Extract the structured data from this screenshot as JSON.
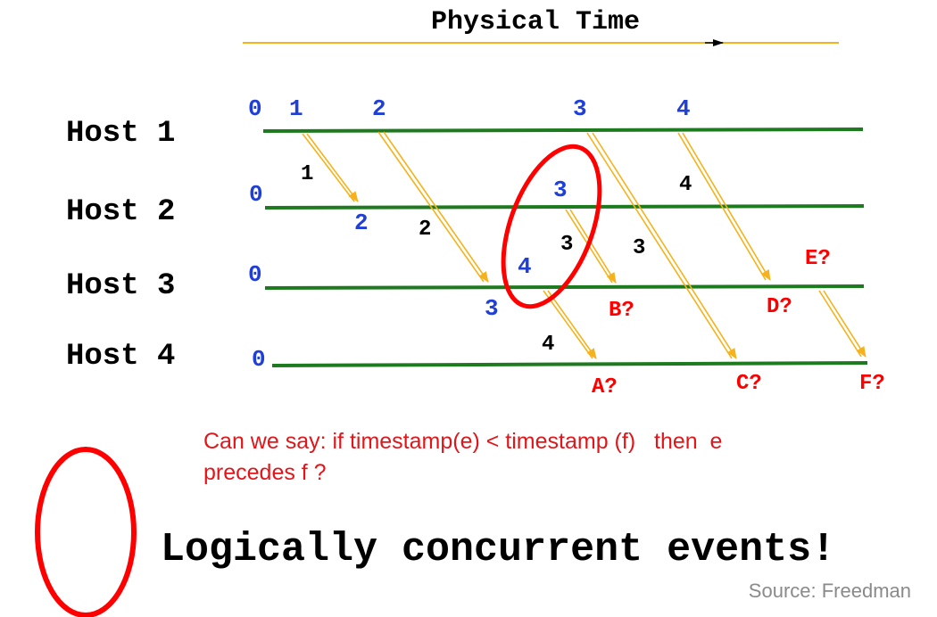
{
  "title": "Physical Time",
  "hosts": [
    "Host 1",
    "Host 2",
    "Host 3",
    "Host 4"
  ],
  "clock_labels": {
    "host1": [
      "0",
      "1",
      "2",
      "3",
      "4"
    ],
    "host2": [
      "0",
      "2",
      "3"
    ],
    "host3": [
      "0",
      "3",
      "4"
    ],
    "host4": [
      "0"
    ]
  },
  "message_labels": [
    "1",
    "2",
    "3",
    "3",
    "4",
    "4"
  ],
  "question_labels": [
    "A?",
    "B?",
    "C?",
    "D?",
    "E?",
    "F?"
  ],
  "question_text_line1": "Can we say: if timestamp(e) < timestamp (f)   then  e",
  "question_text_line2": "precedes f ?",
  "legend_text": "Logically concurrent events!",
  "source": "Source: Freedman",
  "colors": {
    "timeline": "#1e7a1e",
    "arrow": "#f5b21c",
    "clock": "#1f3fd6",
    "question": "#ff0000",
    "ellipse": "#ff0000"
  }
}
